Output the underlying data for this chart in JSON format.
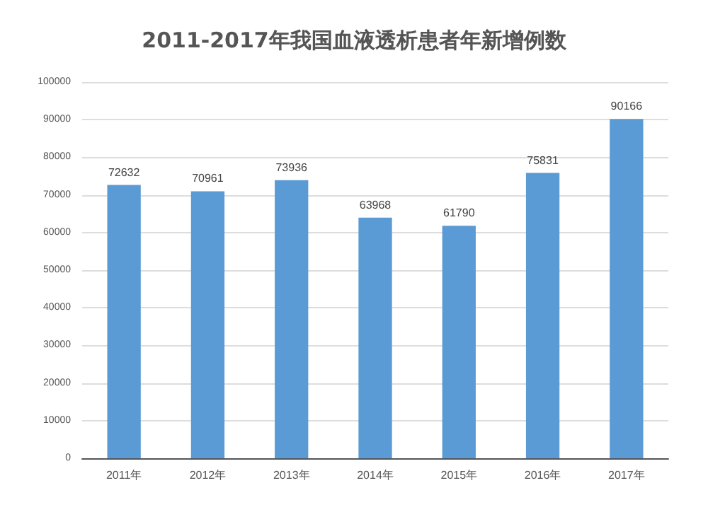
{
  "chart_data": {
    "type": "bar",
    "title": "2011-2017年我国血液透析患者年新增例数",
    "categories": [
      "2011年",
      "2012年",
      "2013年",
      "2014年",
      "2015年",
      "2016年",
      "2017年"
    ],
    "values": [
      72632,
      70961,
      73936,
      63968,
      61790,
      75831,
      90166
    ],
    "color": "#5b9bd5",
    "ylim": [
      0,
      100000
    ],
    "yticks": [
      0,
      10000,
      20000,
      30000,
      40000,
      50000,
      60000,
      70000,
      80000,
      90000,
      100000
    ],
    "grid": "y",
    "data_labels": true
  }
}
